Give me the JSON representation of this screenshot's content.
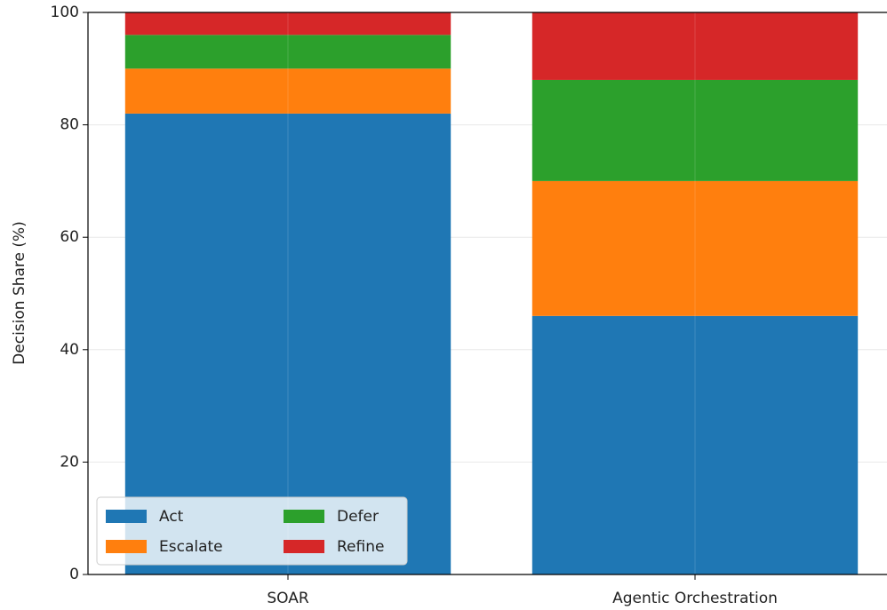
{
  "chart_data": {
    "type": "bar",
    "stacked": true,
    "y_label": "Decision Share (%)",
    "categories": [
      "SOAR",
      "Agentic Orchestration"
    ],
    "series": [
      {
        "name": "Act",
        "color": "#1f77b4",
        "values": [
          82,
          46
        ]
      },
      {
        "name": "Escalate",
        "color": "#ff7f0e",
        "values": [
          8,
          24
        ]
      },
      {
        "name": "Defer",
        "color": "#2ca02c",
        "values": [
          6,
          18
        ]
      },
      {
        "name": "Refine",
        "color": "#d62728",
        "values": [
          4,
          12
        ]
      }
    ],
    "ylim": [
      0,
      100
    ],
    "yticks": [
      0,
      20,
      40,
      60,
      80,
      100
    ],
    "grid": true,
    "legend": "lower left"
  }
}
